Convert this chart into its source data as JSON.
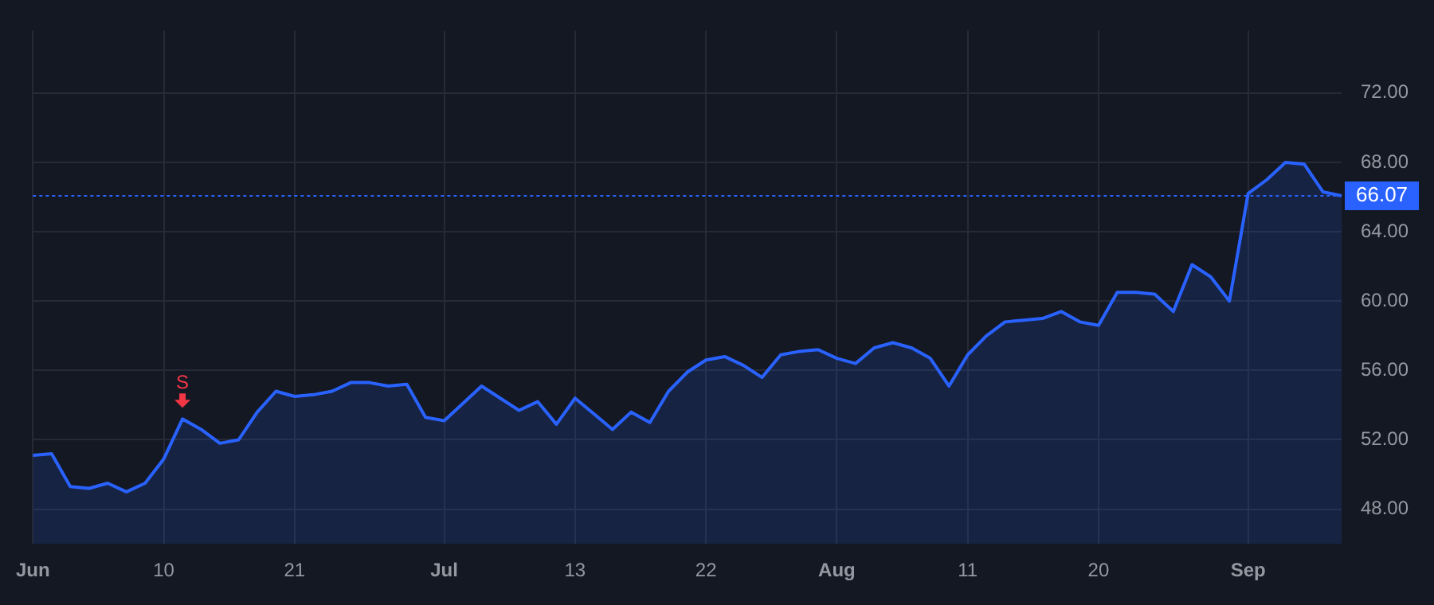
{
  "chart_data": {
    "type": "area",
    "categories": [
      "Jun",
      null,
      null,
      null,
      null,
      null,
      null,
      "10",
      null,
      null,
      null,
      null,
      null,
      null,
      "21",
      null,
      null,
      null,
      null,
      null,
      null,
      null,
      "Jul",
      null,
      null,
      null,
      null,
      null,
      null,
      "13",
      null,
      null,
      null,
      null,
      null,
      null,
      "22",
      null,
      null,
      null,
      null,
      null,
      null,
      "Aug",
      null,
      null,
      null,
      null,
      null,
      null,
      "11",
      null,
      null,
      null,
      null,
      null,
      null,
      "20",
      null,
      null,
      null,
      null,
      null,
      null,
      null,
      "Sep",
      null,
      null,
      null,
      null,
      null
    ],
    "series": [
      {
        "color": "#2962ff",
        "values": [
          51.1,
          51.2,
          49.3,
          49.2,
          49.5,
          49.0,
          49.5,
          50.9,
          53.2,
          52.6,
          51.8,
          52.0,
          53.6,
          54.8,
          54.5,
          54.6,
          54.8,
          55.3,
          55.3,
          55.1,
          55.2,
          53.3,
          53.1,
          54.1,
          55.1,
          54.4,
          53.7,
          54.2,
          52.9,
          54.4,
          53.5,
          52.6,
          53.6,
          53.0,
          54.8,
          55.9,
          56.6,
          56.8,
          56.3,
          55.6,
          56.9,
          57.1,
          57.2,
          56.7,
          56.4,
          57.3,
          57.6,
          57.3,
          56.7,
          55.1,
          56.9,
          58.0,
          58.8,
          58.9,
          59.0,
          59.4,
          58.8,
          58.6,
          60.5,
          60.5,
          60.4,
          59.4,
          62.1,
          61.4,
          60.0,
          66.2,
          67.0,
          68.0,
          67.9,
          66.3,
          66.07
        ]
      }
    ],
    "ylim": [
      46,
      75.6
    ],
    "yticks": [
      {
        "value": 48,
        "label": "48.00"
      },
      {
        "value": 52,
        "label": "52.00"
      },
      {
        "value": 56,
        "label": "56.00"
      },
      {
        "value": 60,
        "label": "60.00"
      },
      {
        "value": 64,
        "label": "64.00"
      },
      {
        "value": 68,
        "label": "68.00"
      },
      {
        "value": 72,
        "label": "72.00"
      }
    ],
    "ref_lines": [
      {
        "axis": "y",
        "value": 66.07,
        "label": "66.07",
        "color": "#2962ff",
        "line_style": "dotted"
      }
    ],
    "annotations": [
      {
        "text": "S",
        "y": 53.2
      }
    ],
    "grid": true,
    "legend": false,
    "marker": "none",
    "line_style": "solid"
  }
}
